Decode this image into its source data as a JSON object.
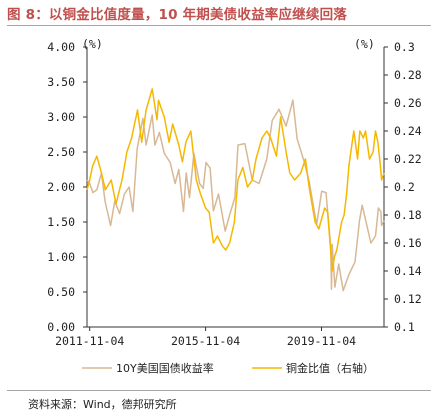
{
  "title": "图 8：以铜金比值度量，10 年期美债收益率应继续回落",
  "source": "资料来源：Wind，德邦研究所",
  "chart_data": {
    "type": "line",
    "left_axis": {
      "unit": "(%)",
      "ylim": [
        0,
        4
      ],
      "ticks": [
        "4.00",
        "3.50",
        "3.00",
        "2.50",
        "2.00",
        "1.50",
        "1.00",
        "0.50",
        "0.00"
      ]
    },
    "right_axis": {
      "unit": "(%)",
      "ylim": [
        0.1,
        0.3
      ],
      "ticks": [
        "0.3",
        "0.28",
        "0.26",
        "0.24",
        "0.22",
        "0.2",
        "0.18",
        "0.16",
        "0.14",
        "0.12",
        "0.1"
      ]
    },
    "x_ticks": [
      "2011-11-04",
      "2015-11-04",
      "2019-11-04"
    ],
    "xlim": [
      "2011-10-01",
      "2021-12-31"
    ],
    "colors": {
      "yield": "#d8b894",
      "copper_gold": "#f5b800",
      "axis": "#333333"
    },
    "series": [
      {
        "name": "10Y美国国债收益率",
        "axis": "left",
        "points": [
          [
            "2011-10-01",
            2.1
          ],
          [
            "2011-11-04",
            2.05
          ],
          [
            "2011-12-15",
            1.92
          ],
          [
            "2012-02-01",
            1.96
          ],
          [
            "2012-04-01",
            2.2
          ],
          [
            "2012-05-15",
            1.8
          ],
          [
            "2012-07-25",
            1.45
          ],
          [
            "2012-09-15",
            1.8
          ],
          [
            "2012-11-15",
            1.62
          ],
          [
            "2013-01-15",
            1.9
          ],
          [
            "2013-03-15",
            2.0
          ],
          [
            "2013-05-01",
            1.65
          ],
          [
            "2013-06-25",
            2.55
          ],
          [
            "2013-09-05",
            2.98
          ],
          [
            "2013-10-15",
            2.6
          ],
          [
            "2013-12-31",
            3.03
          ],
          [
            "2014-02-03",
            2.6
          ],
          [
            "2014-04-01",
            2.78
          ],
          [
            "2014-06-01",
            2.48
          ],
          [
            "2014-08-15",
            2.35
          ],
          [
            "2014-10-15",
            2.05
          ],
          [
            "2014-12-01",
            2.25
          ],
          [
            "2015-01-30",
            1.65
          ],
          [
            "2015-03-05",
            2.2
          ],
          [
            "2015-04-15",
            1.85
          ],
          [
            "2015-06-10",
            2.48
          ],
          [
            "2015-08-20",
            2.05
          ],
          [
            "2015-10-05",
            1.98
          ],
          [
            "2015-11-09",
            2.35
          ],
          [
            "2015-12-31",
            2.27
          ],
          [
            "2016-02-11",
            1.66
          ],
          [
            "2016-04-15",
            1.9
          ],
          [
            "2016-07-08",
            1.37
          ],
          [
            "2016-09-01",
            1.6
          ],
          [
            "2016-11-08",
            1.85
          ],
          [
            "2016-12-16",
            2.6
          ],
          [
            "2017-03-13",
            2.62
          ],
          [
            "2017-06-14",
            2.1
          ],
          [
            "2017-09-08",
            2.05
          ],
          [
            "2017-12-15",
            2.4
          ],
          [
            "2018-02-21",
            2.95
          ],
          [
            "2018-05-17",
            3.11
          ],
          [
            "2018-08-15",
            2.87
          ],
          [
            "2018-11-08",
            3.24
          ],
          [
            "2018-12-31",
            2.69
          ],
          [
            "2019-03-28",
            2.37
          ],
          [
            "2019-06-03",
            2.07
          ],
          [
            "2019-09-03",
            1.46
          ],
          [
            "2019-11-07",
            1.94
          ],
          [
            "2019-12-31",
            1.92
          ],
          [
            "2020-02-28",
            1.15
          ],
          [
            "2020-03-09",
            0.54
          ],
          [
            "2020-03-18",
            1.18
          ],
          [
            "2020-04-21",
            0.57
          ],
          [
            "2020-06-08",
            0.9
          ],
          [
            "2020-08-04",
            0.52
          ],
          [
            "2020-10-15",
            0.75
          ],
          [
            "2020-12-31",
            0.93
          ],
          [
            "2021-02-25",
            1.52
          ],
          [
            "2021-03-31",
            1.74
          ],
          [
            "2021-07-19",
            1.2
          ],
          [
            "2021-09-15",
            1.3
          ],
          [
            "2021-10-21",
            1.7
          ],
          [
            "2021-11-22",
            1.65
          ],
          [
            "2021-12-01",
            1.45
          ],
          [
            "2021-12-31",
            1.52
          ]
        ]
      },
      {
        "name": "铜金比值（右轴）",
        "axis": "right",
        "points": [
          [
            "2011-10-01",
            0.198
          ],
          [
            "2011-11-04",
            0.205
          ],
          [
            "2011-12-10",
            0.215
          ],
          [
            "2012-02-01",
            0.222
          ],
          [
            "2012-04-01",
            0.21
          ],
          [
            "2012-05-20",
            0.198
          ],
          [
            "2012-08-01",
            0.205
          ],
          [
            "2012-10-01",
            0.188
          ],
          [
            "2012-12-15",
            0.205
          ],
          [
            "2013-02-15",
            0.225
          ],
          [
            "2013-04-15",
            0.235
          ],
          [
            "2013-06-28",
            0.255
          ],
          [
            "2013-08-20",
            0.232
          ],
          [
            "2013-10-15",
            0.255
          ],
          [
            "2013-12-31",
            0.27
          ],
          [
            "2014-03-01",
            0.248
          ],
          [
            "2014-03-20",
            0.262
          ],
          [
            "2014-06-01",
            0.25
          ],
          [
            "2014-08-01",
            0.232
          ],
          [
            "2014-09-15",
            0.245
          ],
          [
            "2014-12-01",
            0.23
          ],
          [
            "2015-01-15",
            0.218
          ],
          [
            "2015-03-01",
            0.232
          ],
          [
            "2015-05-01",
            0.24
          ],
          [
            "2015-07-10",
            0.205
          ],
          [
            "2015-09-01",
            0.195
          ],
          [
            "2015-11-04",
            0.185
          ],
          [
            "2015-12-20",
            0.182
          ],
          [
            "2016-02-11",
            0.16
          ],
          [
            "2016-04-01",
            0.165
          ],
          [
            "2016-06-01",
            0.158
          ],
          [
            "2016-07-15",
            0.155
          ],
          [
            "2016-09-01",
            0.16
          ],
          [
            "2016-11-01",
            0.175
          ],
          [
            "2016-12-15",
            0.205
          ],
          [
            "2017-02-15",
            0.214
          ],
          [
            "2017-04-15",
            0.2
          ],
          [
            "2017-06-15",
            0.205
          ],
          [
            "2017-08-01",
            0.22
          ],
          [
            "2017-10-15",
            0.235
          ],
          [
            "2017-12-15",
            0.24
          ],
          [
            "2018-02-01",
            0.235
          ],
          [
            "2018-04-15",
            0.222
          ],
          [
            "2018-06-07",
            0.25
          ],
          [
            "2018-08-15",
            0.225
          ],
          [
            "2018-10-01",
            0.21
          ],
          [
            "2018-12-01",
            0.205
          ],
          [
            "2019-02-15",
            0.21
          ],
          [
            "2019-04-15",
            0.22
          ],
          [
            "2019-06-01",
            0.2
          ],
          [
            "2019-08-15",
            0.175
          ],
          [
            "2019-10-01",
            0.17
          ],
          [
            "2019-12-15",
            0.185
          ],
          [
            "2020-01-20",
            0.182
          ],
          [
            "2020-03-19",
            0.14
          ],
          [
            "2020-04-15",
            0.15
          ],
          [
            "2020-05-15",
            0.155
          ],
          [
            "2020-07-15",
            0.175
          ],
          [
            "2020-08-15",
            0.18
          ],
          [
            "2020-09-15",
            0.195
          ],
          [
            "2020-10-15",
            0.215
          ],
          [
            "2020-12-15",
            0.24
          ],
          [
            "2021-02-01",
            0.22
          ],
          [
            "2021-03-01",
            0.24
          ],
          [
            "2021-04-15",
            0.235
          ],
          [
            "2021-05-12",
            0.24
          ],
          [
            "2021-07-01",
            0.22
          ],
          [
            "2021-08-15",
            0.225
          ],
          [
            "2021-09-15",
            0.24
          ],
          [
            "2021-10-15",
            0.232
          ],
          [
            "2021-11-15",
            0.215
          ],
          [
            "2021-12-01",
            0.205
          ],
          [
            "2021-12-31",
            0.21
          ]
        ]
      }
    ]
  }
}
